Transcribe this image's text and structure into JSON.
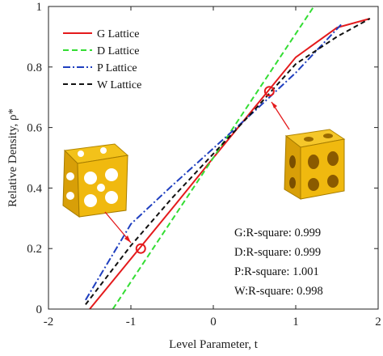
{
  "chart_data": {
    "type": "line",
    "title": "",
    "xlabel": "Level Parameter, t",
    "ylabel": "Relative Density, ρ*",
    "xlim": [
      -2,
      2
    ],
    "ylim": [
      0,
      1
    ],
    "xticks": [
      "-2",
      "-1",
      "0",
      "1",
      "2"
    ],
    "yticks": [
      "0",
      "0.2",
      "0.4",
      "0.6",
      "0.8",
      "1"
    ],
    "grid": false,
    "legend_position": "top-left",
    "series": [
      {
        "name": "G Lattice",
        "color": "#e41a1c",
        "style": "solid",
        "x": [
          -1.5,
          -1.0,
          -0.5,
          0.0,
          0.5,
          1.0,
          1.5,
          1.9
        ],
        "y": [
          0.0,
          0.166,
          0.332,
          0.5,
          0.666,
          0.832,
          0.93,
          0.96
        ]
      },
      {
        "name": "D Lattice",
        "color": "#33dd33",
        "style": "dashed",
        "x": [
          -1.22,
          -1.0,
          -0.5,
          0.0,
          0.5,
          1.0,
          1.22
        ],
        "y": [
          0.0,
          0.09,
          0.295,
          0.5,
          0.705,
          0.91,
          1.0
        ]
      },
      {
        "name": "P Lattice",
        "color": "#1f3fbf",
        "style": "dashdot",
        "x": [
          -1.55,
          -1.0,
          -0.5,
          0.0,
          0.5,
          1.0,
          1.55
        ],
        "y": [
          0.03,
          0.281,
          0.408,
          0.531,
          0.654,
          0.781,
          0.94
        ]
      },
      {
        "name": "W Lattice",
        "color": "#111111",
        "style": "dashed",
        "x": [
          -1.55,
          -1.0,
          -0.5,
          0.0,
          0.5,
          1.0,
          1.5,
          1.9
        ],
        "y": [
          0.015,
          0.21,
          0.367,
          0.513,
          0.658,
          0.81,
          0.9,
          0.96
        ]
      }
    ],
    "markers": [
      {
        "x": -0.88,
        "y": 0.2,
        "color": "#e41a1c"
      },
      {
        "x": 0.68,
        "y": 0.72,
        "color": "#e41a1c"
      }
    ],
    "annotations": [
      {
        "label": "G:R-square: 0.999"
      },
      {
        "label": "D:R-square: 0.999"
      },
      {
        "label": "P:R-square: 1.001"
      },
      {
        "label": "W:R-square: 0.998"
      }
    ]
  }
}
